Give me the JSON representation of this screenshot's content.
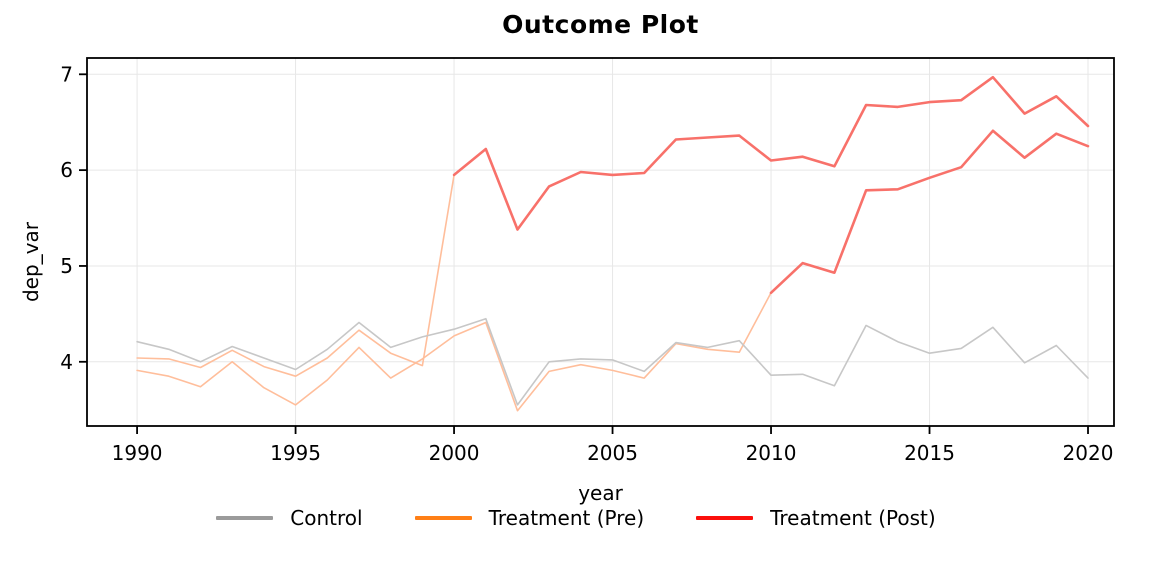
{
  "figure": {
    "title": "Outcome Plot"
  },
  "chart_data": {
    "type": "line",
    "title": "Outcome Plot",
    "xlabel": "year",
    "ylabel": "dep_var",
    "xlim": [
      1988.42,
      2020.82
    ],
    "ylim": [
      3.33,
      7.17
    ],
    "xticks": [
      1990,
      1995,
      2000,
      2005,
      2010,
      2015,
      2020
    ],
    "yticks": [
      4,
      5,
      6,
      7
    ],
    "grid": true,
    "grid_color": "#e7e7e7",
    "spine_color": "#000000",
    "legend_position": "bottom",
    "series": [
      {
        "name": "treatment-cohort-2000-pre",
        "legend_group": "Treatment (Pre)",
        "color": "#ffbe9b",
        "line_width": 1.6,
        "x": [
          1990,
          1991,
          1992,
          1993,
          1994,
          1995,
          1996,
          1997,
          1998,
          1999,
          2000
        ],
        "values": [
          4.04,
          4.03,
          3.94,
          4.12,
          3.95,
          3.85,
          4.04,
          4.33,
          4.09,
          3.96,
          5.95
        ]
      },
      {
        "name": "treatment-cohort-2010-pre",
        "legend_group": "Treatment (Pre)",
        "color": "#ffbe9b",
        "line_width": 1.6,
        "x": [
          1990,
          1991,
          1992,
          1993,
          1994,
          1995,
          1996,
          1997,
          1998,
          1999,
          2000,
          2001,
          2002,
          2003,
          2004,
          2005,
          2006,
          2007,
          2008,
          2009,
          2010
        ],
        "values": [
          3.91,
          3.85,
          3.74,
          4.0,
          3.73,
          3.55,
          3.81,
          4.15,
          3.83,
          4.03,
          4.27,
          4.41,
          3.49,
          3.9,
          3.97,
          3.91,
          3.83,
          4.19,
          4.13,
          4.1,
          4.72
        ]
      },
      {
        "name": "control",
        "legend_group": "Control",
        "color": "#c7c7c7",
        "line_width": 1.6,
        "x": [
          1990,
          1991,
          1992,
          1993,
          1994,
          1995,
          1996,
          1997,
          1998,
          1999,
          2000,
          2001,
          2002,
          2003,
          2004,
          2005,
          2006,
          2007,
          2008,
          2009,
          2010,
          2011,
          2012,
          2013,
          2014,
          2015,
          2016,
          2017,
          2018,
          2019,
          2020
        ],
        "values": [
          4.21,
          4.13,
          4.0,
          4.16,
          4.04,
          3.92,
          4.13,
          4.41,
          4.15,
          4.26,
          4.34,
          4.45,
          3.55,
          4.0,
          4.03,
          4.02,
          3.9,
          4.2,
          4.15,
          4.22,
          3.86,
          3.87,
          3.75,
          4.38,
          4.21,
          4.09,
          4.14,
          4.36,
          3.99,
          4.17,
          3.83
        ]
      },
      {
        "name": "treatment-cohort-2000-post",
        "legend_group": "Treatment (Post)",
        "color": "#f8716a",
        "line_width": 2.6,
        "x": [
          2000,
          2001,
          2002,
          2003,
          2004,
          2005,
          2006,
          2007,
          2008,
          2009,
          2010,
          2011,
          2012,
          2013,
          2014,
          2015,
          2016,
          2017,
          2018,
          2019,
          2020
        ],
        "values": [
          5.95,
          6.22,
          5.38,
          5.83,
          5.98,
          5.95,
          5.97,
          6.32,
          6.34,
          6.36,
          6.1,
          6.14,
          6.04,
          6.68,
          6.66,
          6.71,
          6.73,
          6.97,
          6.59,
          6.77,
          6.46
        ]
      },
      {
        "name": "treatment-cohort-2010-post",
        "legend_group": "Treatment (Post)",
        "color": "#f8716a",
        "line_width": 2.6,
        "x": [
          2010,
          2011,
          2012,
          2013,
          2014,
          2015,
          2016,
          2017,
          2018,
          2019,
          2020
        ],
        "values": [
          4.72,
          5.03,
          4.93,
          5.79,
          5.8,
          5.92,
          6.03,
          6.41,
          6.13,
          6.38,
          6.25
        ]
      }
    ],
    "legend": [
      {
        "label": "Control",
        "color": "#9b9b9b"
      },
      {
        "label": "Treatment (Pre)",
        "color": "#ff7f16"
      },
      {
        "label": "Treatment (Post)",
        "color": "#fb0f0c"
      }
    ]
  }
}
